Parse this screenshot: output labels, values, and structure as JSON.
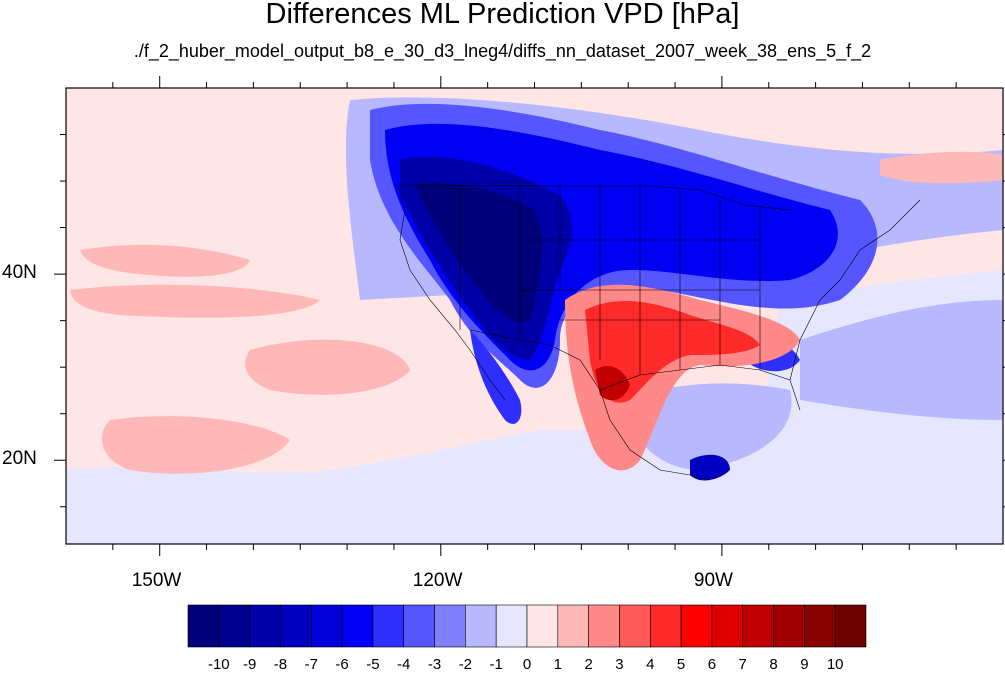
{
  "title": "Differences ML Prediction VPD [hPa]",
  "subtitle": "./f_2_huber_model_output_b8_e_30_d3_lneg4/diffs_nn_dataset_2007_week_38_ens_5_f_2",
  "map": {
    "projection": "cylindrical-equidistant",
    "lon_range": [
      -160,
      -60
    ],
    "lat_range": [
      11,
      60
    ],
    "x_ticks": [
      {
        "lon": -150,
        "label": "150W"
      },
      {
        "lon": -120,
        "label": "120W"
      },
      {
        "lon": -90,
        "label": "90W"
      }
    ],
    "y_ticks": [
      {
        "lat": 40,
        "label": "40N"
      },
      {
        "lat": 20,
        "label": "20N"
      }
    ],
    "palette_name": "blue-white-red diverging"
  },
  "colorbar": {
    "labels": [
      "-10",
      "-9",
      "-8",
      "-7",
      "-6",
      "-5",
      "-4",
      "-3",
      "-2",
      "-1",
      "0",
      "1",
      "2",
      "3",
      "4",
      "5",
      "6",
      "7",
      "8",
      "9",
      "10"
    ],
    "colors": [
      "#00007a",
      "#000090",
      "#0000a8",
      "#0000c0",
      "#0000d8",
      "#0000f2",
      "#2e2eff",
      "#5656ff",
      "#8080ff",
      "#b8b8ff",
      "#e6e6ff",
      "#ffe6e6",
      "#ffb8b8",
      "#ff8888",
      "#ff5a5a",
      "#ff2a2a",
      "#ff0000",
      "#de0000",
      "#c00000",
      "#a00000",
      "#880000",
      "#700000"
    ]
  }
}
